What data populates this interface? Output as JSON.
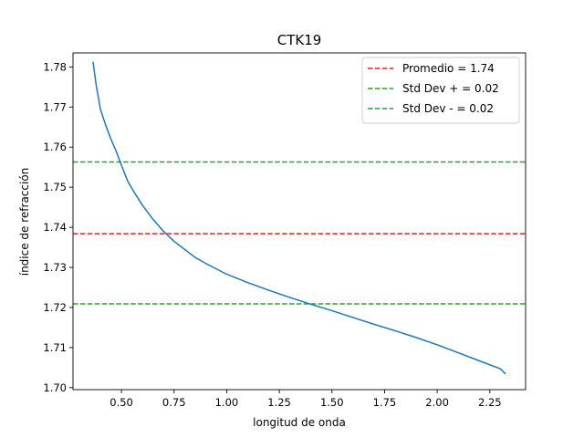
{
  "chart_data": {
    "type": "line",
    "title": "CTK19",
    "xlabel": "longitud de onda",
    "ylabel": "índice de refracción",
    "xlim": [
      0.27,
      2.42
    ],
    "ylim": [
      1.6995,
      1.7835
    ],
    "grid": false,
    "legend_position": "top-right",
    "x_ticks": [
      0.5,
      0.75,
      1.0,
      1.25,
      1.5,
      1.75,
      2.0,
      2.25
    ],
    "x_tick_labels": [
      "0.50",
      "0.75",
      "1.00",
      "1.25",
      "1.50",
      "1.75",
      "2.00",
      "2.25"
    ],
    "y_ticks": [
      1.7,
      1.71,
      1.72,
      1.73,
      1.74,
      1.75,
      1.76,
      1.77,
      1.78
    ],
    "y_tick_labels": [
      "1.70",
      "1.71",
      "1.72",
      "1.73",
      "1.74",
      "1.75",
      "1.76",
      "1.77",
      "1.78"
    ],
    "series": [
      {
        "color": "#1f77b4",
        "x": [
          0.365,
          0.38,
          0.4,
          0.425,
          0.45,
          0.475,
          0.5,
          0.53,
          0.56,
          0.6,
          0.65,
          0.7,
          0.75,
          0.8,
          0.85,
          0.9,
          1.0,
          1.1,
          1.2,
          1.3,
          1.4,
          1.5,
          1.6,
          1.7,
          1.8,
          1.9,
          2.0,
          2.1,
          2.2,
          2.25,
          2.3,
          2.325
        ],
        "y": [
          1.7813,
          1.7755,
          1.7695,
          1.7655,
          1.762,
          1.759,
          1.7555,
          1.7515,
          1.7488,
          1.7455,
          1.742,
          1.739,
          1.7365,
          1.7345,
          1.7325,
          1.731,
          1.7283,
          1.7262,
          1.7243,
          1.7225,
          1.7208,
          1.7192,
          1.7175,
          1.7158,
          1.7142,
          1.7125,
          1.7107,
          1.7087,
          1.7067,
          1.7057,
          1.7047,
          1.7034
        ]
      }
    ],
    "hlines": [
      {
        "name": "Promedio = 1.74",
        "y": 1.7384,
        "color": "#d62728",
        "dash": "dashed"
      },
      {
        "name": "Std Dev + = 0.02",
        "y": 1.7563,
        "color": "#2ca02c",
        "dash": "dashed"
      },
      {
        "name": "Std Dev - = 0.02",
        "y": 1.7209,
        "color": "#2ca02c",
        "dash": "dashed"
      }
    ]
  }
}
